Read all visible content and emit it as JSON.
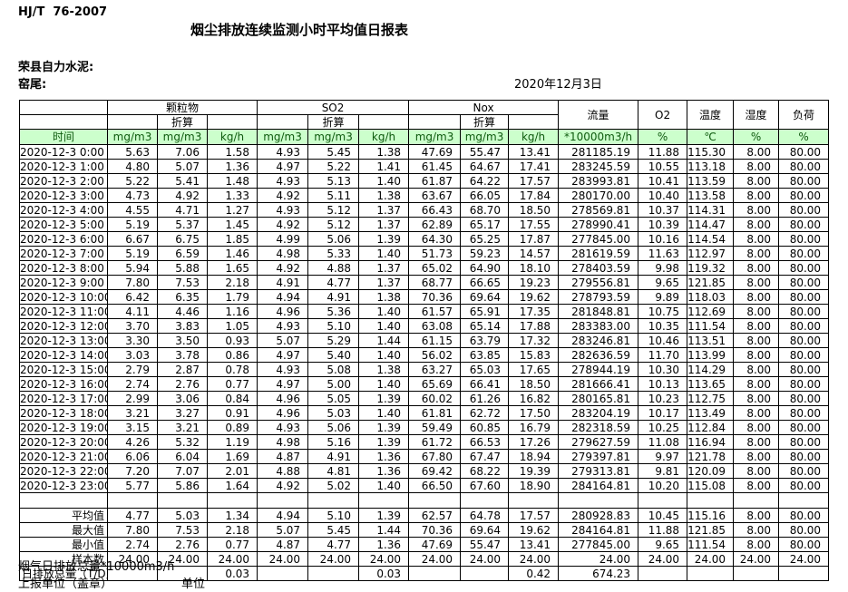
{
  "page": {
    "standard": "HJ/T  76-2007",
    "title": "烟尘排放连续监测小时平均值日报表",
    "company": "荣县自力水泥:",
    "kiln": "窑尾:",
    "date": "2020年12月3日"
  },
  "colors": {
    "header_bg": "#ccffcc",
    "header_text": "#0f5a0f",
    "border": "#000000"
  },
  "table": {
    "groups": {
      "pm": "颗粒物",
      "so2": "SO2",
      "nox": "Nox",
      "flow": "流量",
      "o2": "O2",
      "temp": "温度",
      "humidity": "湿度",
      "load": "负荷"
    },
    "subheader": "折算",
    "units_row": [
      "时间",
      "mg/m3",
      "mg/m3",
      "kg/h",
      "mg/m3",
      "mg/m3",
      "kg/h",
      "mg/m3",
      "mg/m3",
      "kg/h",
      "*10000m3/h",
      "%",
      "℃",
      "%",
      "%"
    ],
    "rows": [
      {
        "time": "2020-12-3 0:00",
        "values": [
          "5.63",
          "7.06",
          "1.58",
          "4.93",
          "5.45",
          "1.38",
          "47.69",
          "55.47",
          "13.41",
          "281185.19",
          "11.88",
          "115.30",
          "8.00",
          "80.00"
        ]
      },
      {
        "time": "2020-12-3 1:00",
        "values": [
          "4.80",
          "5.07",
          "1.36",
          "4.97",
          "5.22",
          "1.41",
          "61.45",
          "64.67",
          "17.41",
          "283245.59",
          "10.55",
          "113.18",
          "8.00",
          "80.00"
        ]
      },
      {
        "time": "2020-12-3 2:00",
        "values": [
          "5.22",
          "5.41",
          "1.48",
          "4.93",
          "5.13",
          "1.40",
          "61.87",
          "64.22",
          "17.57",
          "283993.81",
          "10.41",
          "113.59",
          "8.00",
          "80.00"
        ]
      },
      {
        "time": "2020-12-3 3:00",
        "values": [
          "4.73",
          "4.92",
          "1.33",
          "4.92",
          "5.11",
          "1.38",
          "63.67",
          "66.05",
          "17.84",
          "280170.00",
          "10.40",
          "113.58",
          "8.00",
          "80.00"
        ]
      },
      {
        "time": "2020-12-3 4:00",
        "values": [
          "4.55",
          "4.71",
          "1.27",
          "4.93",
          "5.12",
          "1.37",
          "66.43",
          "68.70",
          "18.50",
          "278569.81",
          "10.37",
          "114.31",
          "8.00",
          "80.00"
        ]
      },
      {
        "time": "2020-12-3 5:00",
        "values": [
          "5.19",
          "5.37",
          "1.45",
          "4.92",
          "5.12",
          "1.37",
          "62.89",
          "65.17",
          "17.55",
          "278990.41",
          "10.39",
          "114.47",
          "8.00",
          "80.00"
        ]
      },
      {
        "time": "2020-12-3 6:00",
        "values": [
          "6.67",
          "6.75",
          "1.85",
          "4.99",
          "5.06",
          "1.39",
          "64.30",
          "65.25",
          "17.87",
          "277845.00",
          "10.16",
          "114.54",
          "8.00",
          "80.00"
        ]
      },
      {
        "time": "2020-12-3 7:00",
        "values": [
          "5.19",
          "6.59",
          "1.46",
          "4.98",
          "5.33",
          "1.40",
          "51.73",
          "59.23",
          "14.57",
          "281619.59",
          "11.63",
          "112.97",
          "8.00",
          "80.00"
        ]
      },
      {
        "time": "2020-12-3 8:00",
        "values": [
          "5.94",
          "5.88",
          "1.65",
          "4.92",
          "4.88",
          "1.37",
          "65.02",
          "64.90",
          "18.10",
          "278403.59",
          "9.98",
          "119.32",
          "8.00",
          "80.00"
        ]
      },
      {
        "time": "2020-12-3 9:00",
        "values": [
          "7.80",
          "7.53",
          "2.18",
          "4.91",
          "4.77",
          "1.37",
          "68.77",
          "66.65",
          "19.23",
          "279556.81",
          "9.65",
          "121.85",
          "8.00",
          "80.00"
        ]
      },
      {
        "time": "2020-12-3 10:00",
        "values": [
          "6.42",
          "6.35",
          "1.79",
          "4.94",
          "4.91",
          "1.38",
          "70.36",
          "69.64",
          "19.62",
          "278793.59",
          "9.89",
          "118.03",
          "8.00",
          "80.00"
        ]
      },
      {
        "time": "2020-12-3 11:00",
        "values": [
          "4.11",
          "4.46",
          "1.16",
          "4.96",
          "5.36",
          "1.40",
          "61.57",
          "65.91",
          "17.35",
          "281848.81",
          "10.75",
          "112.69",
          "8.00",
          "80.00"
        ]
      },
      {
        "time": "2020-12-3 12:00",
        "values": [
          "3.70",
          "3.83",
          "1.05",
          "4.93",
          "5.10",
          "1.40",
          "63.08",
          "65.14",
          "17.88",
          "283383.00",
          "10.35",
          "111.54",
          "8.00",
          "80.00"
        ]
      },
      {
        "time": "2020-12-3 13:00",
        "values": [
          "3.30",
          "3.50",
          "0.93",
          "5.07",
          "5.29",
          "1.44",
          "61.15",
          "63.79",
          "17.32",
          "283246.81",
          "10.46",
          "113.51",
          "8.00",
          "80.00"
        ]
      },
      {
        "time": "2020-12-3 14:00",
        "values": [
          "3.03",
          "3.78",
          "0.86",
          "4.97",
          "5.40",
          "1.40",
          "56.02",
          "63.85",
          "15.83",
          "282636.59",
          "11.70",
          "113.99",
          "8.00",
          "80.00"
        ]
      },
      {
        "time": "2020-12-3 15:00",
        "values": [
          "2.79",
          "2.87",
          "0.78",
          "4.93",
          "5.08",
          "1.38",
          "63.27",
          "65.03",
          "17.65",
          "278944.19",
          "10.30",
          "114.29",
          "8.00",
          "80.00"
        ]
      },
      {
        "time": "2020-12-3 16:00",
        "values": [
          "2.74",
          "2.76",
          "0.77",
          "4.97",
          "5.00",
          "1.40",
          "65.69",
          "66.41",
          "18.50",
          "281666.41",
          "10.13",
          "113.65",
          "8.00",
          "80.00"
        ]
      },
      {
        "time": "2020-12-3 17:00",
        "values": [
          "2.99",
          "3.06",
          "0.84",
          "4.96",
          "5.05",
          "1.39",
          "60.02",
          "61.26",
          "16.82",
          "280165.81",
          "10.23",
          "112.75",
          "8.00",
          "80.00"
        ]
      },
      {
        "time": "2020-12-3 18:00",
        "values": [
          "3.21",
          "3.27",
          "0.91",
          "4.96",
          "5.03",
          "1.40",
          "61.81",
          "62.72",
          "17.50",
          "283204.19",
          "10.17",
          "113.49",
          "8.00",
          "80.00"
        ]
      },
      {
        "time": "2020-12-3 19:00",
        "values": [
          "3.15",
          "3.21",
          "0.89",
          "4.93",
          "5.06",
          "1.39",
          "59.49",
          "60.85",
          "16.79",
          "282318.59",
          "10.25",
          "112.84",
          "8.00",
          "80.00"
        ]
      },
      {
        "time": "2020-12-3 20:00",
        "values": [
          "4.26",
          "5.32",
          "1.19",
          "4.98",
          "5.16",
          "1.39",
          "61.72",
          "66.53",
          "17.26",
          "279627.59",
          "11.08",
          "116.94",
          "8.00",
          "80.00"
        ]
      },
      {
        "time": "2020-12-3 21:00",
        "values": [
          "6.06",
          "6.04",
          "1.69",
          "4.87",
          "4.91",
          "1.36",
          "67.80",
          "67.47",
          "18.94",
          "279397.81",
          "9.97",
          "121.78",
          "8.00",
          "80.00"
        ]
      },
      {
        "time": "2020-12-3 22:00",
        "values": [
          "7.20",
          "7.07",
          "2.01",
          "4.88",
          "4.81",
          "1.36",
          "69.42",
          "68.22",
          "19.39",
          "279313.81",
          "9.81",
          "120.09",
          "8.00",
          "80.00"
        ]
      },
      {
        "time": "2020-12-3 23:00",
        "values": [
          "5.77",
          "5.86",
          "1.64",
          "4.92",
          "5.02",
          "1.40",
          "66.50",
          "67.60",
          "18.90",
          "284164.81",
          "10.20",
          "115.08",
          "8.00",
          "80.00"
        ]
      }
    ],
    "summary": [
      {
        "label": "平均值",
        "values": [
          "4.77",
          "5.03",
          "1.34",
          "4.94",
          "5.10",
          "1.39",
          "62.57",
          "64.78",
          "17.57",
          "280928.83",
          "10.45",
          "115.16",
          "8.00",
          "80.00"
        ]
      },
      {
        "label": "最大值",
        "values": [
          "7.80",
          "7.53",
          "2.18",
          "5.07",
          "5.45",
          "1.44",
          "70.36",
          "69.64",
          "19.62",
          "284164.81",
          "11.88",
          "121.85",
          "8.00",
          "80.00"
        ]
      },
      {
        "label": "最小值",
        "values": [
          "2.74",
          "2.76",
          "0.77",
          "4.87",
          "4.77",
          "1.36",
          "47.69",
          "55.47",
          "13.41",
          "277845.00",
          "9.65",
          "111.54",
          "8.00",
          "80.00"
        ]
      },
      {
        "label": "样本数",
        "values": [
          "24.00",
          "24.00",
          "24.00",
          "24.00",
          "24.00",
          "24.00",
          "24.00",
          "24.00",
          "24.00",
          "24.00",
          "24.00",
          "24.00",
          "24.00",
          "24.00"
        ]
      }
    ],
    "total": {
      "label": "日排放总量（T/D）",
      "values": [
        "",
        "",
        "0.03",
        "",
        "",
        "0.03",
        "",
        "",
        "0.42",
        "674.23",
        "",
        "",
        "",
        ""
      ]
    }
  },
  "footer": {
    "line1": "烟气日排放总量*10000m3/h",
    "line2": "上报单位（盖章）",
    "line3": "单位"
  }
}
